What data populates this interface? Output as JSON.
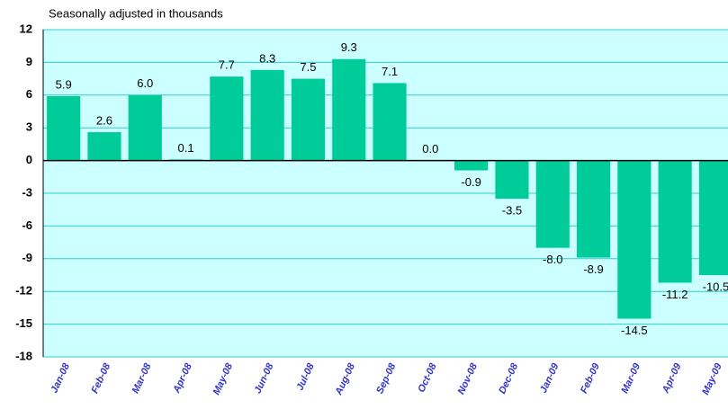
{
  "chart_data": {
    "type": "bar",
    "subtitle": "Seasonally adjusted in thousands",
    "categories": [
      "Jan-08",
      "Feb-08",
      "Mar-08",
      "Apr-08",
      "May-08",
      "Jun-08",
      "Jul-08",
      "Aug-08",
      "Sep-08",
      "Oct-08",
      "Nov-08",
      "Dec-08",
      "Jan-09",
      "Feb-09",
      "Mar-09",
      "Apr-09",
      "May-09"
    ],
    "values": [
      5.9,
      2.6,
      6.0,
      0.1,
      7.7,
      8.3,
      7.5,
      9.3,
      7.1,
      0.0,
      -0.9,
      -3.5,
      -8.0,
      -8.9,
      -14.5,
      -11.2,
      -10.5
    ],
    "value_labels": [
      "5.9",
      "2.6",
      "6.0",
      "0.1",
      "7.7",
      "8.3",
      "7.5",
      "9.3",
      "7.1",
      "0.0",
      "-0.9",
      "-3.5",
      "-8.0",
      "-8.9",
      "-14.5",
      "-11.2",
      "-10.5"
    ],
    "color": "#00cc99",
    "ylim": [
      -18,
      12
    ],
    "yticks": [
      12,
      9,
      6,
      3,
      0,
      -3,
      -6,
      -9,
      -12,
      -15,
      -18
    ],
    "grid": true
  }
}
